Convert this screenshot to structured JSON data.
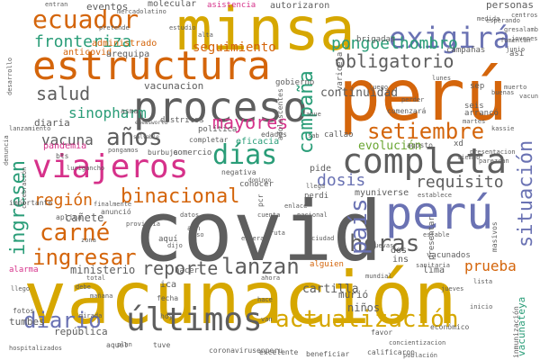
{
  "palette": {
    "gold": "#d6a700",
    "orange": "#d4650b",
    "blue": "#6a72b3",
    "gray": "#5e5e5e",
    "teal": "#2a9d78",
    "pink": "#d6318a",
    "green": "#6aa632"
  },
  "words": [
    {
      "text": "covid",
      "color": "gray"
    },
    {
      "text": "vacunación",
      "color": "gold"
    },
    {
      "text": "perú",
      "color": "orange"
    },
    {
      "text": "minsa",
      "color": "gold"
    },
    {
      "text": "estructura",
      "color": "orange"
    },
    {
      "text": "proceso",
      "color": "gray"
    },
    {
      "text": "completa",
      "color": "gray"
    },
    {
      "text": "perú",
      "color": "blue"
    },
    {
      "text": "viajeros",
      "color": "pink"
    },
    {
      "text": "exigirá",
      "color": "blue"
    },
    {
      "text": "ecuador",
      "color": "orange"
    },
    {
      "text": "últimos",
      "color": "gray"
    },
    {
      "text": "actualización",
      "color": "gold"
    },
    {
      "text": "campaña",
      "color": "teal"
    },
    {
      "text": "días",
      "color": "teal"
    },
    {
      "text": "setiembre",
      "color": "orange"
    },
    {
      "text": "carné",
      "color": "orange"
    },
    {
      "text": "ingresar",
      "color": "orange"
    },
    {
      "text": "ingresen",
      "color": "teal"
    },
    {
      "text": "binacional",
      "color": "orange"
    },
    {
      "text": "horas",
      "color": "gray"
    },
    {
      "text": "lanzan",
      "color": "gray"
    },
    {
      "text": "situación",
      "color": "blue"
    },
    {
      "text": "país",
      "color": "blue"
    },
    {
      "text": "diario",
      "color": "blue"
    },
    {
      "text": "años",
      "color": "gray"
    },
    {
      "text": "obligatorio",
      "color": "gray"
    },
    {
      "text": "pongoelhombro",
      "color": "teal"
    },
    {
      "text": "fronteriza",
      "color": "teal"
    },
    {
      "text": "salud",
      "color": "gray"
    },
    {
      "text": "mayores",
      "color": "pink"
    },
    {
      "text": "reporte",
      "color": "gray"
    },
    {
      "text": "región",
      "color": "orange"
    },
    {
      "text": "dosis",
      "color": "blue"
    },
    {
      "text": "requisito",
      "color": "gray"
    },
    {
      "text": "prueba",
      "color": "orange"
    },
    {
      "text": "evolución",
      "color": "green"
    },
    {
      "text": "sinopharm",
      "color": "teal"
    },
    {
      "text": "vacuna",
      "color": "gray"
    },
    {
      "text": "cañete",
      "color": "gray"
    },
    {
      "text": "tumbes",
      "color": "gray"
    },
    {
      "text": "república",
      "color": "gray"
    },
    {
      "text": "continuidad",
      "color": "gray"
    },
    {
      "text": "seguimiento",
      "color": "orange"
    },
    {
      "text": "ministerio",
      "color": "gray"
    },
    {
      "text": "cartilla",
      "color": "gray"
    },
    {
      "text": "niños",
      "color": "gray"
    },
    {
      "text": "murió",
      "color": "gray"
    },
    {
      "text": "pandemia",
      "color": "pink"
    },
    {
      "text": "diaria",
      "color": "gray"
    },
    {
      "text": "eventos",
      "color": "gray"
    },
    {
      "text": "asistencia",
      "color": "pink"
    },
    {
      "text": "autorizaron",
      "color": "gray"
    },
    {
      "text": "personas",
      "color": "gray"
    },
    {
      "text": "molecular",
      "color": "gray"
    },
    {
      "text": "administrado",
      "color": "orange"
    },
    {
      "text": "anticovid",
      "color": "orange"
    },
    {
      "text": "arequipa",
      "color": "gray"
    },
    {
      "text": "vacunacion",
      "color": "gray"
    },
    {
      "text": "gobierno",
      "color": "gray"
    },
    {
      "text": "distritos",
      "color": "gray"
    },
    {
      "text": "eficacia",
      "color": "teal"
    },
    {
      "text": "comercio",
      "color": "gray"
    },
    {
      "text": "política",
      "color": "gray"
    },
    {
      "text": "edades",
      "color": "gray"
    },
    {
      "text": "brigadas",
      "color": "gray"
    },
    {
      "text": "varicela",
      "color": "gray"
    },
    {
      "text": "callao",
      "color": "gray"
    },
    {
      "text": "pide",
      "color": "gray"
    },
    {
      "text": "myuniverse",
      "color": "gray"
    },
    {
      "text": "perdi",
      "color": "gray"
    },
    {
      "text": "conocer",
      "color": "gray"
    },
    {
      "text": "negativa",
      "color": "gray"
    },
    {
      "text": "hacer",
      "color": "gray"
    },
    {
      "text": "ica",
      "color": "gray"
    },
    {
      "text": "lima",
      "color": "gray"
    },
    {
      "text": "ins",
      "color": "gray"
    },
    {
      "text": "dos",
      "color": "gray"
    },
    {
      "text": "alguien",
      "color": "orange"
    },
    {
      "text": "anunció",
      "color": "gray"
    },
    {
      "text": "aquí",
      "color": "gray"
    },
    {
      "text": "aun",
      "color": "gray"
    },
    {
      "text": "aplica",
      "color": "gray"
    },
    {
      "text": "alarma",
      "color": "pink"
    },
    {
      "text": "importante",
      "color": "gray"
    },
    {
      "text": "completar",
      "color": "gray"
    },
    {
      "text": "coronavirusenperu",
      "color": "gray"
    },
    {
      "text": "beneficiar",
      "color": "gray"
    },
    {
      "text": "calificaron",
      "color": "gray"
    },
    {
      "text": "económico",
      "color": "gray"
    },
    {
      "text": "presentar",
      "color": "gray"
    },
    {
      "text": "vacunados",
      "color": "gray"
    },
    {
      "text": "comenzará",
      "color": "gray"
    },
    {
      "text": "arrancó",
      "color": "gray"
    },
    {
      "text": "seis",
      "color": "gray"
    },
    {
      "text": "agosto",
      "color": "gray"
    },
    {
      "text": "xd",
      "color": "gray"
    },
    {
      "text": "masivos",
      "color": "gray"
    },
    {
      "text": "inmunización",
      "color": "gray"
    },
    {
      "text": "vacunateya",
      "color": "teal"
    },
    {
      "text": "bts",
      "color": "gray"
    },
    {
      "text": "sep",
      "color": "gray"
    },
    {
      "text": "así",
      "color": "gray"
    },
    {
      "text": "campañas",
      "color": "gray"
    },
    {
      "text": "mercadolatino",
      "color": "gray"
    },
    {
      "text": "medida",
      "color": "gray"
    },
    {
      "text": "esperando",
      "color": "gray"
    },
    {
      "text": "centros",
      "color": "gray"
    },
    {
      "text": "excelente",
      "color": "gray"
    },
    {
      "text": "tuve",
      "color": "gray"
    },
    {
      "text": "adolescentes",
      "color": "gray"
    },
    {
      "text": "enlace",
      "color": "gray"
    },
    {
      "text": "debe",
      "color": "gray"
    },
    {
      "text": "mirada",
      "color": "gray"
    },
    {
      "text": "fotos",
      "color": "gray"
    },
    {
      "text": "fecha",
      "color": "gray"
    },
    {
      "text": "plan",
      "color": "gray"
    },
    {
      "text": "hoy",
      "color": "gray"
    },
    {
      "text": "aquel",
      "color": "gray"
    },
    {
      "text": "favor",
      "color": "gray"
    },
    {
      "text": "concientizacion",
      "color": "gray"
    },
    {
      "text": "lanzamiento",
      "color": "gray"
    },
    {
      "text": "celebración",
      "color": "gray"
    },
    {
      "text": "sab",
      "color": "gray"
    },
    {
      "text": "abue",
      "color": "gray"
    },
    {
      "text": "buenas",
      "color": "gray"
    },
    {
      "text": "pcr",
      "color": "gray"
    },
    {
      "text": "llega",
      "color": "gray"
    },
    {
      "text": "asma",
      "color": "gray"
    },
    {
      "text": "burbuja",
      "color": "gray"
    },
    {
      "text": "entran",
      "color": "gray"
    },
    {
      "text": "pretende",
      "color": "gray"
    },
    {
      "text": "nuevas",
      "color": "gray"
    },
    {
      "text": "esperar",
      "color": "gray"
    },
    {
      "text": "población",
      "color": "gray"
    },
    {
      "text": "presentacion",
      "color": "gray"
    },
    {
      "text": "martes",
      "color": "gray"
    },
    {
      "text": "lunes",
      "color": "gray"
    },
    {
      "text": "estudio",
      "color": "gray"
    },
    {
      "text": "alta",
      "color": "gray"
    },
    {
      "text": "parezcan",
      "color": "gray"
    },
    {
      "text": "muerto",
      "color": "gray"
    },
    {
      "text": "denuncia",
      "color": "gray"
    },
    {
      "text": "desarrollo",
      "color": "gray"
    },
    {
      "text": "sanitaria",
      "color": "gray"
    },
    {
      "text": "finalmente",
      "color": "gray"
    },
    {
      "text": "luego",
      "color": "gray"
    },
    {
      "text": "enewsworld",
      "color": "gray"
    },
    {
      "text": "estable",
      "color": "gray"
    },
    {
      "text": "establece",
      "color": "gray"
    },
    {
      "text": "salvable",
      "color": "gray"
    },
    {
      "text": "fomentan",
      "color": "gray"
    },
    {
      "text": "domingo",
      "color": "gray"
    },
    {
      "text": "gresalamb",
      "color": "gray"
    },
    {
      "text": "junio",
      "color": "gray"
    },
    {
      "text": "jovenes",
      "color": "gray"
    },
    {
      "text": "pongamos",
      "color": "gray"
    },
    {
      "text": "lurigancho",
      "color": "gray"
    },
    {
      "text": "llego",
      "color": "gray"
    },
    {
      "text": "vacun",
      "color": "gray"
    },
    {
      "text": "kassie",
      "color": "gray"
    },
    {
      "text": "perder",
      "color": "gray"
    },
    {
      "text": "dijo",
      "color": "gray"
    },
    {
      "text": "hospitalizados",
      "color": "gray"
    },
    {
      "text": "jueves",
      "color": "gray"
    },
    {
      "text": "ciudad",
      "color": "gray"
    },
    {
      "text": "tiempo",
      "color": "gray"
    },
    {
      "text": "cuenta",
      "color": "gray"
    },
    {
      "text": "nacional",
      "color": "gray"
    },
    {
      "text": "provincia",
      "color": "gray"
    },
    {
      "text": "datos",
      "color": "gray"
    },
    {
      "text": "uso",
      "color": "gray"
    },
    {
      "text": "ruta",
      "color": "gray"
    },
    {
      "text": "zona",
      "color": "gray"
    },
    {
      "text": "total",
      "color": "gray"
    },
    {
      "text": "ahora",
      "color": "gray"
    },
    {
      "text": "mañana",
      "color": "gray"
    },
    {
      "text": "mundial",
      "color": "gray"
    },
    {
      "text": "lista",
      "color": "gray"
    },
    {
      "text": "inicio",
      "color": "gray"
    },
    {
      "text": "hace",
      "color": "gray"
    },
    {
      "text": "van",
      "color": "gray"
    }
  ]
}
